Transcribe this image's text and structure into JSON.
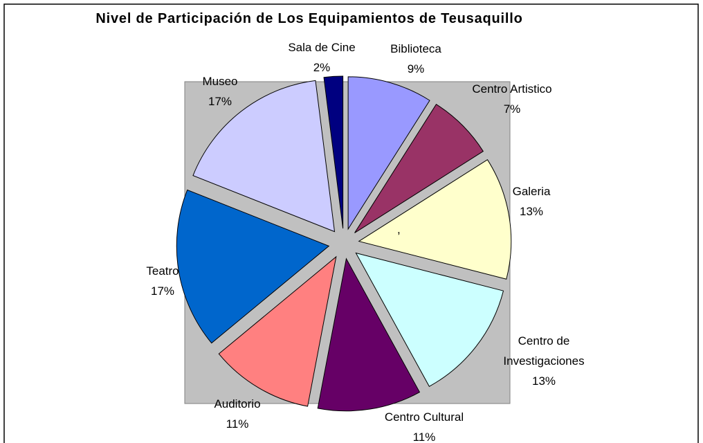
{
  "chart_data": {
    "type": "pie",
    "title": "Nivel de Participación de Los Equipamientos de Teusaquillo",
    "categories": [
      "Biblioteca",
      "Centro Artistico",
      "Galeria",
      "Centro de Investigaciones",
      "Centro Cultural",
      "Auditorio",
      "Teatro",
      "Museo",
      "Sala de Cine"
    ],
    "values": [
      9,
      7,
      13,
      13,
      11,
      11,
      17,
      17,
      2
    ],
    "value_labels": [
      "9%",
      "7%",
      "13%",
      "13%",
      "11%",
      "11%",
      "17%",
      "17%",
      "2%"
    ],
    "colors": [
      "#9999ff",
      "#993366",
      "#ffffcc",
      "#ccffff",
      "#660066",
      "#ff8080",
      "#0066cc",
      "#ccccff",
      "#000080"
    ],
    "annotation": ","
  }
}
